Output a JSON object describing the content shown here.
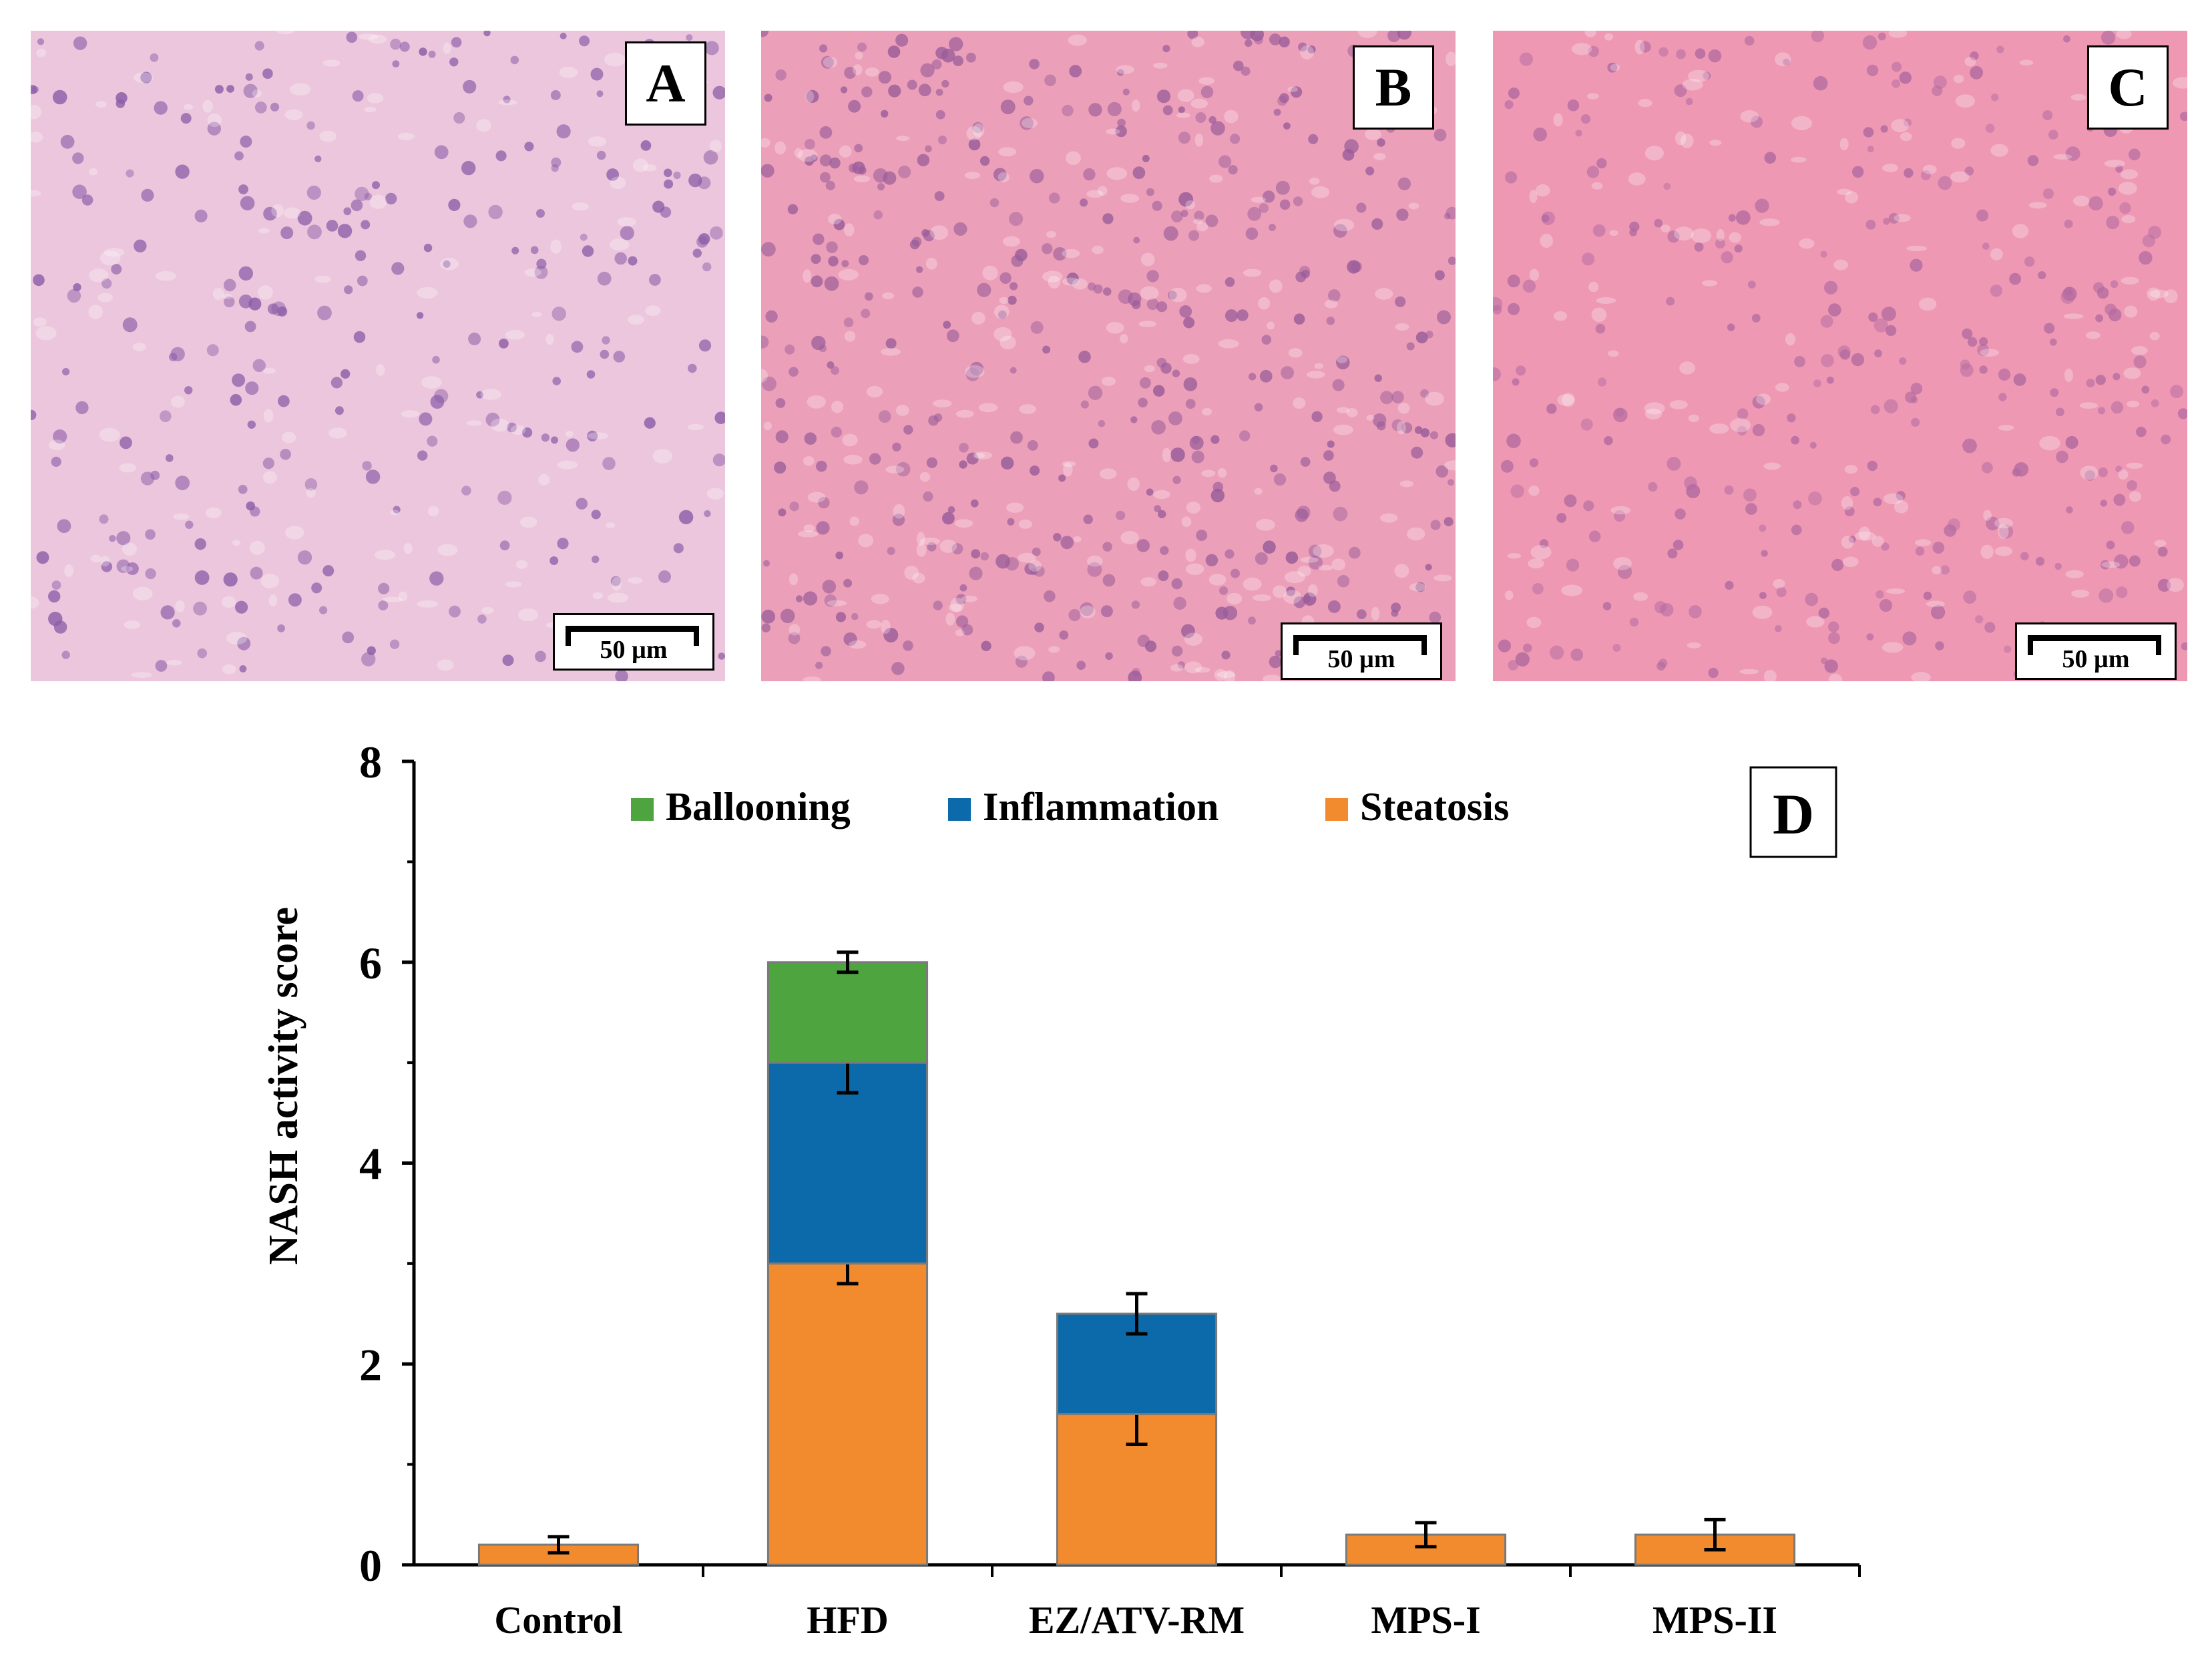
{
  "panels": [
    {
      "letter": "A",
      "scale_label": "50 µm",
      "bg": "#ecc6dd"
    },
    {
      "letter": "B",
      "scale_label": "50 µm",
      "bg": "#ec9fb8"
    },
    {
      "letter": "C",
      "scale_label": "50 µm",
      "bg": "#ee98b3"
    }
  ],
  "chart_panel_letter": "D",
  "colors": {
    "steatosis": "#f28a2e",
    "inflammation": "#0c6aaa",
    "ballooning": "#4ea540"
  },
  "chart_data": {
    "type": "bar",
    "stacked": true,
    "categories": [
      "Control",
      "HFD",
      "EZ/ATV-RM",
      "MPS-I",
      "MPS-II"
    ],
    "series": [
      {
        "name": "Steatosis",
        "values": [
          0.2,
          3.0,
          1.5,
          0.3,
          0.3
        ],
        "errors": [
          0.08,
          0.2,
          0.3,
          0.12,
          0.15
        ],
        "color": "#f28a2e"
      },
      {
        "name": "Inflammation",
        "values": [
          0,
          2.0,
          1.0,
          0,
          0
        ],
        "errors": [
          0,
          0.3,
          0.2,
          0,
          0
        ],
        "color": "#0c6aaa"
      },
      {
        "name": "Ballooning",
        "values": [
          0,
          1.0,
          0,
          0,
          0
        ],
        "errors": [
          0,
          0.1,
          0,
          0,
          0
        ],
        "color": "#4ea540"
      }
    ],
    "legend": [
      "Ballooning",
      "Inflammation",
      "Steatosis"
    ],
    "legend_position": "top",
    "ylabel": "NASH activity score",
    "xlabel": "",
    "ylim": [
      0,
      8
    ],
    "yticks": [
      0,
      2,
      4,
      6,
      8
    ],
    "grid": false
  }
}
